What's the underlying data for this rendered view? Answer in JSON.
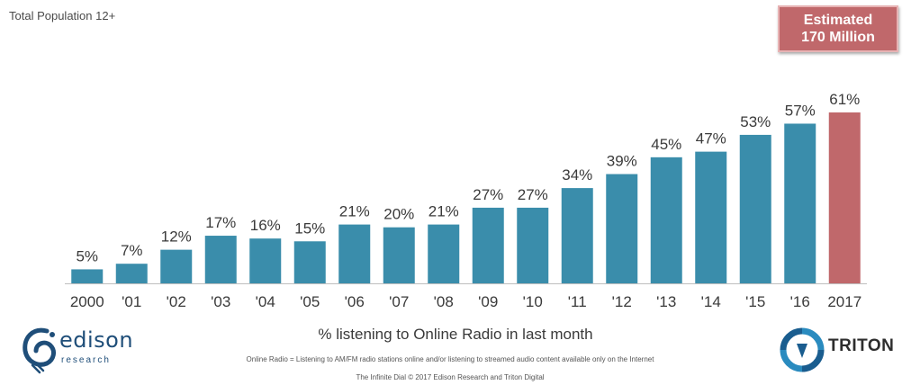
{
  "subtitle": "Total Population 12+",
  "estimate": {
    "line1": "Estimated",
    "line2": "170 Million"
  },
  "chart_data": {
    "type": "bar",
    "categories": [
      "2000",
      "'01",
      "'02",
      "'03",
      "'04",
      "'05",
      "'06",
      "'07",
      "'08",
      "'09",
      "'10",
      "'11",
      "'12",
      "'13",
      "'14",
      "'15",
      "'16",
      "2017"
    ],
    "values": [
      5,
      7,
      12,
      17,
      16,
      15,
      21,
      20,
      21,
      27,
      27,
      34,
      39,
      45,
      47,
      53,
      57,
      61
    ],
    "value_suffix": "%",
    "ylim": [
      0,
      61
    ],
    "xlabel": "% listening to Online Radio in last month",
    "title": "",
    "grid": false,
    "colors": {
      "default": "#3a8dab",
      "highlight": "#c0686b",
      "highlight_category": "2017"
    }
  },
  "footnote": "Online Radio = Listening to AM/FM radio stations online and/or listening to streamed audio content available only on the Internet",
  "credit": "The Infinite Dial  © 2017 Edison Research and Triton Digital",
  "logos": {
    "edison": {
      "name": "edison",
      "sub": "research",
      "icon": "edison-bulb-icon"
    },
    "triton": {
      "name": "TRITON",
      "icon": "triton-ring-icon"
    }
  }
}
